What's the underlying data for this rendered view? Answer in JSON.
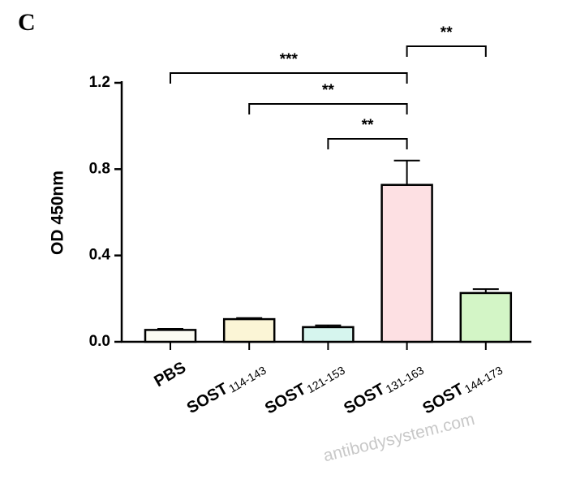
{
  "panel_label": "C",
  "watermark": "antibodysystem.com",
  "chart_data": {
    "type": "bar",
    "ylabel": "OD 450nm",
    "category_labels": [
      {
        "main": "PBS"
      },
      {
        "main": "SOST",
        "sub": "114-143"
      },
      {
        "main": "SOST",
        "sub": "121-153"
      },
      {
        "main": "SOST",
        "sub": "131-163"
      },
      {
        "main": "SOST",
        "sub": "144-173"
      }
    ],
    "values": [
      0.055,
      0.105,
      0.068,
      0.727,
      0.226
    ],
    "errors": [
      0.005,
      0.005,
      0.008,
      0.113,
      0.018
    ],
    "colors": [
      "#fbfbf2",
      "#fbf5d6",
      "#d6f5ee",
      "#fde0e3",
      "#d3f5c6"
    ],
    "ylim": [
      0,
      1.2
    ],
    "yticks": [
      {
        "value": 0,
        "label": "0.0"
      },
      0.4,
      0.8,
      1.2
    ],
    "annotations": [
      {
        "text": "***",
        "from": 0,
        "to": 3
      },
      {
        "text": "**",
        "from": 1,
        "to": 3
      },
      {
        "text": "**",
        "from": 2,
        "to": 3
      },
      {
        "text": "**",
        "from": 3,
        "to": 4
      }
    ]
  }
}
